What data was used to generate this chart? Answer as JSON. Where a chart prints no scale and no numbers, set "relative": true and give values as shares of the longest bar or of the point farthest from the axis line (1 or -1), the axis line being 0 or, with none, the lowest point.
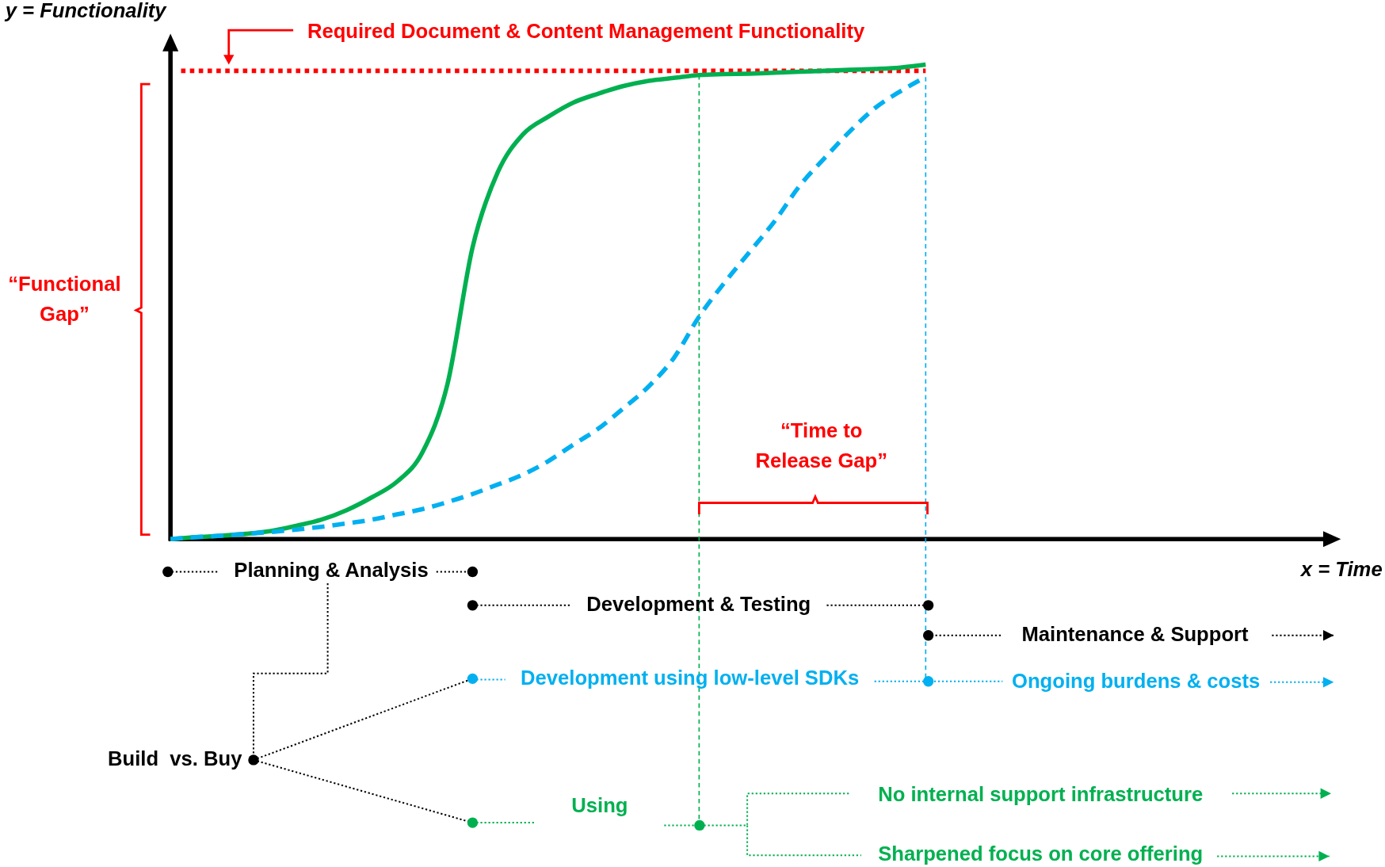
{
  "chart_data": {
    "type": "line",
    "relative": true,
    "xlabel": "x = Time",
    "ylabel": "y = Functionality",
    "categories": [
      null,
      null,
      null,
      null,
      null,
      null,
      null,
      null,
      null,
      null,
      null,
      null,
      null,
      null,
      null,
      null,
      null,
      null,
      null,
      null,
      null,
      null,
      null,
      null,
      null,
      null,
      null,
      null,
      null,
      null,
      null,
      null,
      null,
      null,
      null,
      null,
      null,
      null,
      null,
      null,
      null,
      null,
      null,
      null,
      null,
      null,
      null
    ],
    "series": [
      {
        "color": "#00b050",
        "line_style": "solid",
        "values": [
          0,
          0.004,
          0.007,
          0.011,
          0.017,
          0.028,
          0.041,
          0.061,
          0.088,
          0.121,
          0.182,
          0.326,
          0.615,
          0.773,
          0.853,
          0.89,
          0.92,
          0.939,
          0.955,
          0.966,
          0.972,
          0.978,
          0.98,
          0.981,
          0.983,
          0.985,
          0.987,
          0.989,
          0.991,
          0.994,
          1,
          null,
          null,
          null,
          null,
          null,
          null,
          null,
          null,
          null,
          null,
          null,
          null,
          null,
          null,
          null,
          null
        ]
      },
      {
        "color": "#00b0f0",
        "line_style": "dashed",
        "values": [
          0,
          0.004,
          0.007,
          0.011,
          0.015,
          0.02,
          0.026,
          0.033,
          0.041,
          0.052,
          0.063,
          0.078,
          0.095,
          0.115,
          0.136,
          0.164,
          0.199,
          0.233,
          0.276,
          0.322,
          0.382,
          0.469,
          0.54,
          0.605,
          0.67,
          0.745,
          0.804,
          0.86,
          0.909,
          0.944,
          0.974,
          null,
          null,
          null,
          null,
          null,
          null,
          null,
          null,
          null,
          null,
          null,
          null,
          null,
          null,
          null,
          null
        ]
      }
    ],
    "ref_lines": [
      {
        "axis": "y",
        "value": 0.987,
        "label": "Required Document & Content Management Functionality",
        "color": "#ff0000",
        "line_style": "dotted"
      }
    ],
    "annotations": [
      "“Functional Gap”",
      "“Time to Release Gap”",
      "Planning & Analysis",
      "Development & Testing",
      "Maintenance & Support",
      "Development using low-level SDKs",
      "Ongoing burdens & costs",
      "Build  vs. Buy",
      "Using",
      "No internal support infrastructure",
      "Sharpened focus on core offering"
    ]
  }
}
